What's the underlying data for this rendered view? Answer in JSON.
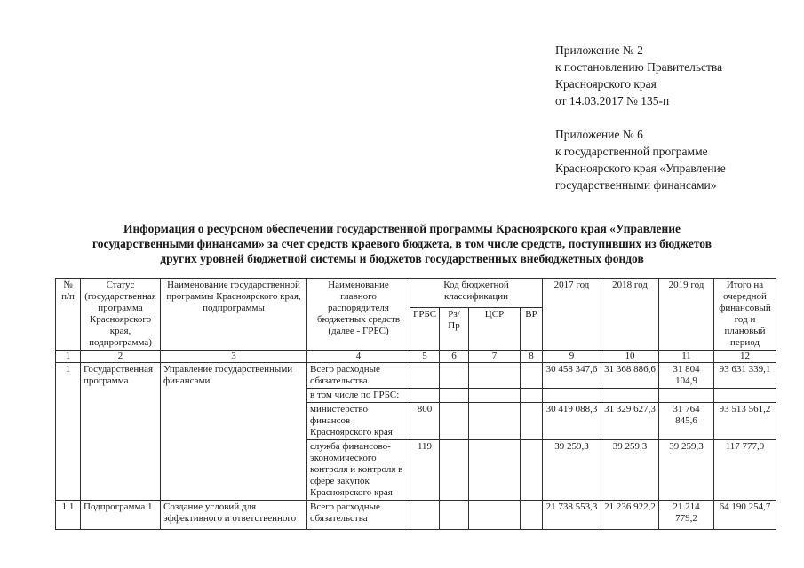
{
  "document": {
    "appendix1": {
      "l1": "Приложение № 2",
      "l2": "к постановлению Правительства",
      "l3": "Красноярского края",
      "l4": "от 14.03.2017 № 135-п"
    },
    "appendix2": {
      "l1": "Приложение № 6",
      "l2": "к государственной программе",
      "l3": "Красноярского края «Управление",
      "l4": "государственными финансами»"
    },
    "title_lines": {
      "l1": "Информация о ресурсном обеспечении государственной программы Красноярского края «Управление",
      "l2": "государственными финансами» за счет средств краевого бюджета, в том числе средств, поступивших из бюджетов",
      "l3": "других уровней бюджетной системы и бюджетов государственных внебюджетных фондов"
    }
  },
  "table": {
    "headers": {
      "num": "№ п/п",
      "status": "Статус (государственная программа Красноярского края, подпрограмма)",
      "program_name": "Наименование государственной программы Красноярского края, подпрограммы",
      "grbs_name": "Наименование главного распорядителя бюджетных средств (далее - ГРБС)",
      "budget_code": "Код бюджетной классификации",
      "grbs": "ГРБС",
      "rzpr": "Рз/Пр",
      "csr": "ЦСР",
      "vr": "ВР",
      "y2017": "2017 год",
      "y2018": "2018 год",
      "y2019": "2019 год",
      "total": "Итого на очередной финансовый год и плановый период"
    },
    "column_numbers": [
      "1",
      "2",
      "3",
      "4",
      "5",
      "6",
      "7",
      "8",
      "9",
      "10",
      "11",
      "12"
    ],
    "rows": [
      {
        "num": "1",
        "status": "Государственная программа",
        "program_name": "Управление государственными финансами",
        "grbs_name": "Всего расходные обязательства",
        "grbs": "",
        "y2017": "30 458 347,6",
        "y2018": "31 368 886,6",
        "y2019": "31 804 104,9",
        "total": "93 631 339,1"
      },
      {
        "grbs_name": "в том числе по ГРБС:"
      },
      {
        "grbs_name": "министерство финансов Красноярского края",
        "grbs": "800",
        "y2017": "30 419 088,3",
        "y2018": "31 329 627,3",
        "y2019": "31 764 845,6",
        "total": "93 513 561,2"
      },
      {
        "grbs_name": "служба финансово-экономического контроля и контроля в сфере закупок Красноярского края",
        "grbs": "119",
        "y2017": "39 259,3",
        "y2018": "39 259,3",
        "y2019": "39 259,3",
        "total": "117 777,9"
      },
      {
        "num": "1.1",
        "status": "Подпрограмма 1",
        "program_name": "Создание условий для эффективного и ответственного",
        "grbs_name": "Всего расходные обязательства",
        "y2017": "21 738 553,3",
        "y2018": "21 236 922,2",
        "y2019": "21 214 779,2",
        "total": "64 190 254,7"
      }
    ]
  }
}
